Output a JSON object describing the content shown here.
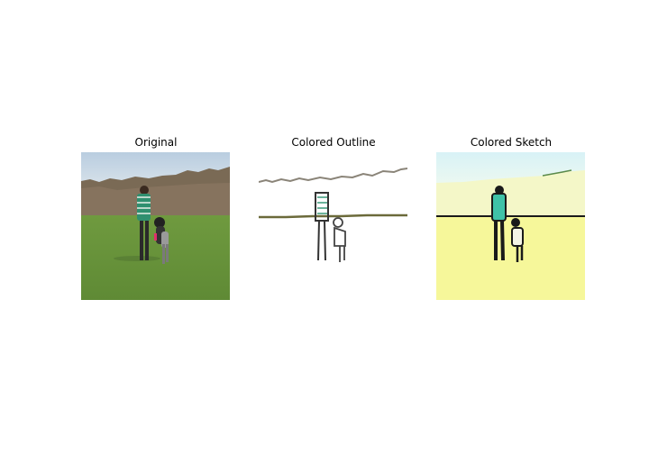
{
  "figure": {
    "panels": [
      {
        "title": "Original"
      },
      {
        "title": "Colored Outline"
      },
      {
        "title": "Colored Sketch"
      }
    ]
  }
}
